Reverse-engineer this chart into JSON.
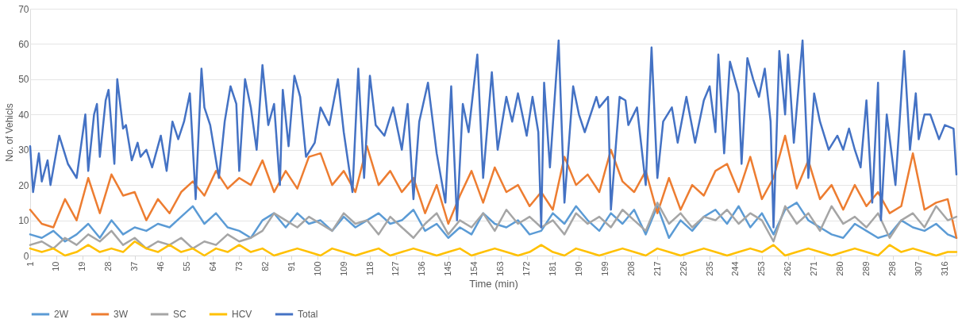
{
  "chart_data": {
    "type": "line",
    "xlabel": "Time (min)",
    "ylabel": "No. of Vehicls",
    "xlim": [
      1,
      320
    ],
    "xticks": [
      1,
      10,
      19,
      28,
      37,
      46,
      55,
      64,
      73,
      82,
      91,
      100,
      109,
      118,
      127,
      136,
      145,
      154,
      163,
      172,
      181,
      190,
      199,
      208,
      217,
      226,
      235,
      244,
      253,
      262,
      271,
      280,
      289,
      298,
      307,
      316
    ],
    "ylim": [
      0,
      70
    ],
    "yticks": [
      0,
      10,
      20,
      30,
      40,
      50,
      60,
      70
    ],
    "grid": "y",
    "legend": "bottom",
    "marker": "none",
    "line_style": "solid",
    "series": [
      {
        "name": "2W",
        "color": "#5b9bd5",
        "x": [
          1,
          5,
          9,
          13,
          17,
          21,
          25,
          29,
          33,
          37,
          41,
          45,
          49,
          53,
          57,
          61,
          65,
          69,
          73,
          77,
          81,
          85,
          89,
          93,
          97,
          101,
          105,
          109,
          113,
          117,
          121,
          125,
          129,
          133,
          137,
          141,
          145,
          149,
          153,
          157,
          161,
          165,
          169,
          173,
          177,
          181,
          185,
          189,
          193,
          197,
          201,
          205,
          209,
          213,
          217,
          221,
          225,
          229,
          233,
          237,
          241,
          245,
          249,
          253,
          257,
          261,
          265,
          269,
          273,
          277,
          281,
          285,
          289,
          293,
          297,
          301,
          305,
          309,
          313,
          317,
          320
        ],
        "values": [
          6,
          5,
          7,
          4,
          6,
          9,
          5,
          10,
          6,
          8,
          7,
          9,
          8,
          11,
          14,
          9,
          12,
          8,
          7,
          5,
          10,
          12,
          8,
          12,
          9,
          10,
          7,
          11,
          8,
          10,
          12,
          9,
          10,
          13,
          7,
          9,
          5,
          8,
          6,
          12,
          9,
          8,
          10,
          6,
          7,
          12,
          9,
          14,
          10,
          7,
          12,
          9,
          13,
          6,
          14,
          5,
          10,
          7,
          11,
          13,
          9,
          14,
          8,
          12,
          6,
          13,
          15,
          10,
          8,
          6,
          5,
          9,
          7,
          5,
          6,
          10,
          8,
          7,
          9,
          6,
          5
        ]
      },
      {
        "name": "3W",
        "color": "#ed7d31",
        "x": [
          1,
          5,
          9,
          13,
          17,
          21,
          25,
          29,
          33,
          37,
          41,
          45,
          49,
          53,
          57,
          61,
          65,
          69,
          73,
          77,
          81,
          85,
          89,
          93,
          97,
          101,
          105,
          109,
          113,
          117,
          121,
          125,
          129,
          133,
          137,
          141,
          145,
          149,
          153,
          157,
          161,
          165,
          169,
          173,
          177,
          181,
          185,
          189,
          193,
          197,
          201,
          205,
          209,
          213,
          217,
          221,
          225,
          229,
          233,
          237,
          241,
          245,
          249,
          253,
          257,
          261,
          265,
          269,
          273,
          277,
          281,
          285,
          289,
          293,
          297,
          301,
          305,
          309,
          313,
          317,
          320
        ],
        "values": [
          13,
          9,
          8,
          16,
          10,
          22,
          12,
          23,
          17,
          18,
          10,
          16,
          12,
          18,
          21,
          17,
          24,
          19,
          22,
          20,
          27,
          18,
          24,
          19,
          28,
          29,
          20,
          24,
          18,
          31,
          20,
          24,
          18,
          22,
          12,
          20,
          9,
          17,
          24,
          15,
          25,
          18,
          20,
          14,
          18,
          13,
          28,
          20,
          23,
          18,
          30,
          21,
          18,
          24,
          12,
          22,
          13,
          20,
          17,
          24,
          26,
          18,
          28,
          16,
          22,
          34,
          19,
          27,
          16,
          20,
          13,
          20,
          14,
          18,
          12,
          14,
          29,
          13,
          15,
          16,
          5
        ]
      },
      {
        "name": "SC",
        "color": "#a5a5a5",
        "x": [
          1,
          5,
          9,
          13,
          17,
          21,
          25,
          29,
          33,
          37,
          41,
          45,
          49,
          53,
          57,
          61,
          65,
          69,
          73,
          77,
          81,
          85,
          89,
          93,
          97,
          101,
          105,
          109,
          113,
          117,
          121,
          125,
          129,
          133,
          137,
          141,
          145,
          149,
          153,
          157,
          161,
          165,
          169,
          173,
          177,
          181,
          185,
          189,
          193,
          197,
          201,
          205,
          209,
          213,
          217,
          221,
          225,
          229,
          233,
          237,
          241,
          245,
          249,
          253,
          257,
          261,
          265,
          269,
          273,
          277,
          281,
          285,
          289,
          293,
          297,
          301,
          305,
          309,
          313,
          317,
          320
        ],
        "values": [
          3,
          4,
          2,
          5,
          3,
          6,
          4,
          7,
          3,
          5,
          2,
          4,
          3,
          5,
          2,
          4,
          3,
          6,
          4,
          5,
          7,
          12,
          10,
          8,
          11,
          9,
          7,
          12,
          9,
          10,
          6,
          11,
          8,
          5,
          9,
          12,
          6,
          10,
          8,
          12,
          7,
          13,
          9,
          11,
          8,
          10,
          6,
          12,
          9,
          11,
          8,
          13,
          10,
          7,
          15,
          9,
          12,
          8,
          11,
          10,
          13,
          9,
          12,
          10,
          4,
          14,
          9,
          12,
          7,
          14,
          9,
          11,
          8,
          12,
          5,
          10,
          12,
          8,
          14,
          10,
          11
        ]
      },
      {
        "name": "HCV",
        "color": "#ffc000",
        "x": [
          1,
          5,
          9,
          13,
          17,
          21,
          25,
          29,
          33,
          37,
          41,
          45,
          49,
          53,
          57,
          61,
          65,
          69,
          73,
          77,
          81,
          85,
          89,
          93,
          97,
          101,
          105,
          109,
          113,
          117,
          121,
          125,
          129,
          133,
          137,
          141,
          145,
          149,
          153,
          157,
          161,
          165,
          169,
          173,
          177,
          181,
          185,
          189,
          193,
          197,
          201,
          205,
          209,
          213,
          217,
          221,
          225,
          229,
          233,
          237,
          241,
          245,
          249,
          253,
          257,
          261,
          265,
          269,
          273,
          277,
          281,
          285,
          289,
          293,
          297,
          301,
          305,
          309,
          313,
          317,
          320
        ],
        "values": [
          2,
          1,
          2,
          0,
          1,
          3,
          1,
          2,
          1,
          4,
          2,
          1,
          3,
          1,
          2,
          0,
          2,
          1,
          3,
          1,
          2,
          0,
          1,
          2,
          1,
          0,
          2,
          1,
          0,
          1,
          2,
          0,
          1,
          2,
          1,
          0,
          1,
          2,
          0,
          1,
          2,
          1,
          0,
          1,
          3,
          1,
          0,
          2,
          1,
          0,
          1,
          2,
          1,
          0,
          2,
          1,
          0,
          1,
          2,
          1,
          0,
          1,
          2,
          1,
          3,
          0,
          1,
          2,
          1,
          0,
          1,
          2,
          1,
          0,
          3,
          1,
          2,
          1,
          0,
          1,
          1
        ]
      },
      {
        "name": "Total",
        "color": "#4472c4",
        "x": [
          1,
          2,
          4,
          5,
          7,
          8,
          11,
          14,
          17,
          20,
          21,
          23,
          24,
          25,
          27,
          28,
          30,
          31,
          33,
          34,
          36,
          38,
          39,
          41,
          43,
          46,
          48,
          50,
          52,
          54,
          56,
          58,
          60,
          61,
          63,
          66,
          68,
          70,
          72,
          73,
          75,
          77,
          79,
          81,
          83,
          85,
          87,
          88,
          90,
          92,
          94,
          96,
          99,
          101,
          104,
          107,
          109,
          112,
          114,
          116,
          118,
          120,
          123,
          126,
          129,
          131,
          133,
          135,
          138,
          141,
          144,
          146,
          148,
          150,
          152,
          155,
          157,
          160,
          162,
          165,
          167,
          169,
          172,
          174,
          176,
          177,
          178,
          180,
          183,
          185,
          188,
          190,
          192,
          196,
          197,
          200,
          201,
          204,
          206,
          207,
          210,
          213,
          215,
          217,
          219,
          222,
          224,
          227,
          230,
          233,
          235,
          237,
          238,
          240,
          242,
          245,
          246,
          248,
          250,
          252,
          254,
          256,
          257,
          259,
          261,
          262,
          264,
          267,
          269,
          271,
          273,
          276,
          279,
          281,
          283,
          285,
          287,
          289,
          291,
          293,
          294,
          296,
          299,
          302,
          304,
          306,
          307,
          309,
          311,
          314,
          316,
          319,
          320
        ],
        "values": [
          31,
          18,
          29,
          21,
          27,
          20,
          34,
          26,
          22,
          40,
          24,
          40,
          43,
          28,
          44,
          47,
          26,
          50,
          36,
          37,
          27,
          32,
          28,
          30,
          25,
          34,
          24,
          38,
          33,
          38,
          46,
          16,
          53,
          42,
          37,
          22,
          38,
          48,
          43,
          24,
          50,
          42,
          30,
          54,
          37,
          43,
          20,
          47,
          31,
          51,
          45,
          28,
          32,
          42,
          37,
          50,
          35,
          18,
          53,
          22,
          51,
          37,
          34,
          42,
          30,
          43,
          16,
          38,
          49,
          29,
          15,
          48,
          10,
          43,
          35,
          57,
          22,
          52,
          30,
          45,
          38,
          46,
          34,
          45,
          35,
          8,
          49,
          25,
          61,
          15,
          48,
          40,
          35,
          45,
          42,
          45,
          13,
          45,
          44,
          37,
          42,
          20,
          59,
          22,
          38,
          42,
          32,
          45,
          32,
          44,
          48,
          35,
          57,
          29,
          55,
          46,
          26,
          56,
          50,
          45,
          53,
          38,
          8,
          58,
          40,
          57,
          32,
          61,
          22,
          46,
          38,
          30,
          34,
          30,
          36,
          30,
          25,
          44,
          15,
          49,
          10,
          40,
          20,
          58,
          30,
          46,
          33,
          40,
          40,
          33,
          37,
          36,
          23
        ]
      }
    ]
  }
}
